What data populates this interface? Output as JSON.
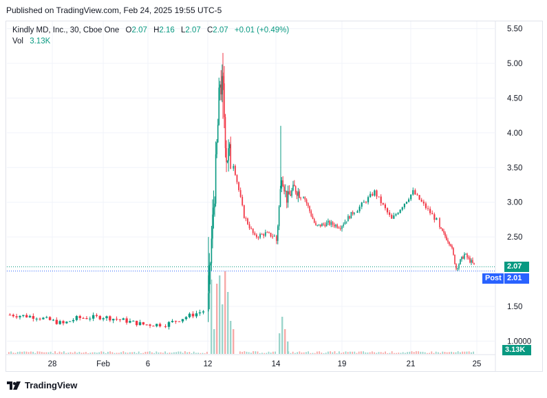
{
  "published": "Published on TradingView.com, Feb 24, 2025 19:55 UTC-5",
  "legend": {
    "symbol": "Kindly MD, Inc., 30, Cboe One",
    "o_label": "O",
    "o_value": "2.07",
    "h_label": "H",
    "h_value": "2.16",
    "l_label": "L",
    "l_value": "2.07",
    "c_label": "C",
    "c_value": "2.07",
    "change": "+0.01 (+0.49%)",
    "vol_label": "Vol",
    "vol_value": "3.13K"
  },
  "price_tags": {
    "last": "2.07",
    "post_label": "Post",
    "post_value": "2.01",
    "volume": "3.13K"
  },
  "footer": {
    "brand": "TradingView"
  },
  "colors": {
    "up": "#089981",
    "down": "#f23645",
    "post": "#2962ff",
    "grid": "#f0f3fa"
  },
  "chart_data": {
    "type": "candlestick",
    "y_ticks": [
      "5.50",
      "5.00",
      "4.50",
      "4.00",
      "3.50",
      "3.00",
      "2.50",
      "1.50",
      "1.0000"
    ],
    "y_tick_values": [
      5.5,
      5.0,
      4.5,
      4.0,
      3.5,
      3.0,
      2.5,
      1.5,
      1.0
    ],
    "x_ticks": [
      "28",
      "Feb",
      "6",
      "12",
      "14",
      "19",
      "21",
      "25"
    ],
    "ylim": [
      0.95,
      5.7
    ],
    "last_price": 2.07,
    "post_price": 2.01,
    "segments": [
      {
        "name": "jan-low",
        "n": 46,
        "path": [
          [
            0,
            1.38
          ],
          [
            8,
            1.35
          ],
          [
            16,
            1.25
          ],
          [
            20,
            1.33
          ],
          [
            28,
            1.35
          ],
          [
            34,
            1.3
          ],
          [
            40,
            1.24
          ],
          [
            46,
            1.24
          ]
        ]
      },
      {
        "name": "pre-spike",
        "n": 12,
        "path": [
          [
            0,
            1.24
          ],
          [
            6,
            1.35
          ],
          [
            12,
            1.45
          ]
        ]
      },
      {
        "name": "feb12-spike",
        "n": 22,
        "path": [
          [
            0,
            1.55
          ],
          [
            3,
            2.45
          ],
          [
            7,
            3.45
          ],
          [
            11,
            4.75
          ],
          [
            14,
            4.55
          ],
          [
            17,
            3.7
          ],
          [
            22,
            3.6
          ]
        ]
      },
      {
        "name": "feb12-fade",
        "n": 24,
        "path": [
          [
            0,
            3.55
          ],
          [
            6,
            2.8
          ],
          [
            12,
            2.5
          ],
          [
            18,
            2.55
          ],
          [
            24,
            2.5
          ]
        ]
      },
      {
        "name": "feb14",
        "n": 20,
        "path": [
          [
            0,
            2.45
          ],
          [
            4,
            3.4
          ],
          [
            8,
            3.05
          ],
          [
            14,
            3.2
          ],
          [
            20,
            3.1
          ]
        ]
      },
      {
        "name": "feb17-19",
        "n": 34,
        "path": [
          [
            0,
            3.1
          ],
          [
            8,
            2.65
          ],
          [
            16,
            2.7
          ],
          [
            24,
            2.65
          ],
          [
            34,
            2.9
          ]
        ]
      },
      {
        "name": "feb20-21",
        "n": 38,
        "path": [
          [
            0,
            2.9
          ],
          [
            8,
            3.15
          ],
          [
            16,
            2.75
          ],
          [
            26,
            3.15
          ],
          [
            38,
            2.7
          ]
        ]
      },
      {
        "name": "feb24",
        "n": 26,
        "path": [
          [
            0,
            2.62
          ],
          [
            8,
            2.4
          ],
          [
            12,
            2.05
          ],
          [
            18,
            2.25
          ],
          [
            26,
            2.07
          ]
        ]
      }
    ],
    "volume_spikes": [
      {
        "x_tick": "12",
        "values": [
          0.9,
          0.3,
          0.85,
          0.95,
          0.6,
          1.0,
          0.75,
          0.4,
          0.3
        ]
      },
      {
        "x_tick": "14",
        "values": [
          0.25,
          0.45,
          0.3,
          0.15
        ]
      }
    ]
  }
}
